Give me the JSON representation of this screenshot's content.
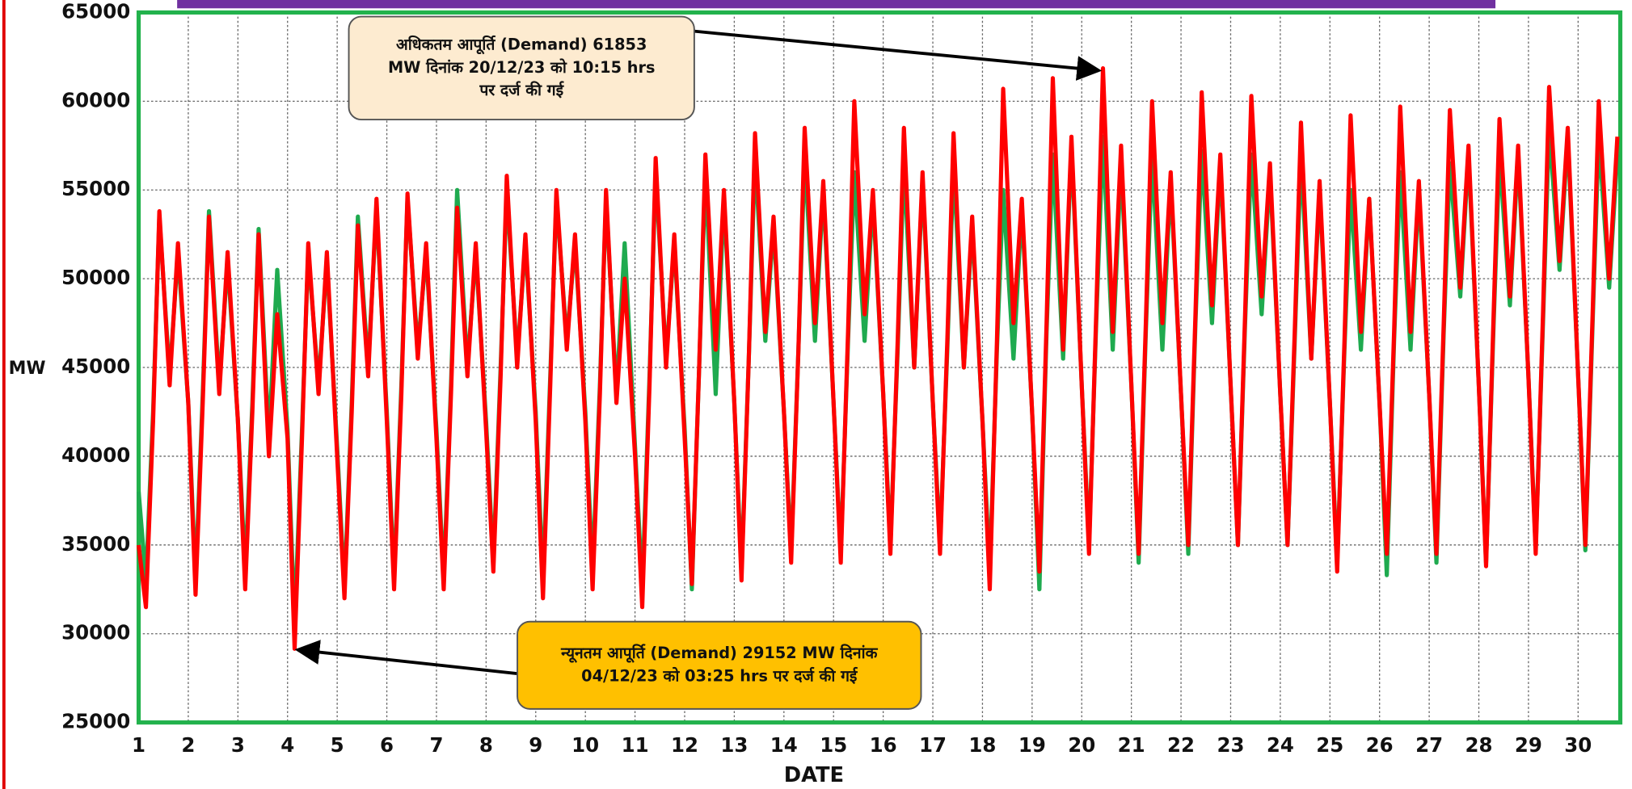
{
  "chart_data": {
    "type": "line",
    "y_label": "MW",
    "x_label": "DATE",
    "x": [
      1,
      1.146,
      1.292,
      1.417,
      1.625,
      1.792,
      2,
      2.146,
      2.292,
      2.417,
      2.625,
      2.792,
      3,
      3.146,
      3.292,
      3.417,
      3.625,
      3.792,
      4,
      4.142,
      4.292,
      4.417,
      4.625,
      4.792,
      5,
      5.146,
      5.292,
      5.417,
      5.625,
      5.792,
      6,
      6.146,
      6.292,
      6.417,
      6.625,
      6.792,
      7,
      7.146,
      7.292,
      7.417,
      7.625,
      7.792,
      8,
      8.146,
      8.292,
      8.417,
      8.625,
      8.792,
      9,
      9.146,
      9.292,
      9.417,
      9.625,
      9.792,
      10,
      10.146,
      10.292,
      10.417,
      10.625,
      10.792,
      11,
      11.146,
      11.292,
      11.417,
      11.625,
      11.792,
      12,
      12.146,
      12.292,
      12.417,
      12.625,
      12.792,
      13,
      13.146,
      13.292,
      13.417,
      13.625,
      13.792,
      14,
      14.146,
      14.292,
      14.417,
      14.625,
      14.792,
      15,
      15.146,
      15.292,
      15.417,
      15.625,
      15.792,
      16,
      16.146,
      16.292,
      16.417,
      16.625,
      16.792,
      17,
      17.146,
      17.292,
      17.417,
      17.625,
      17.792,
      18,
      18.146,
      18.292,
      18.417,
      18.625,
      18.792,
      19,
      19.146,
      19.292,
      19.417,
      19.625,
      19.792,
      20,
      20.146,
      20.292,
      20.427,
      20.625,
      20.792,
      21,
      21.146,
      21.292,
      21.417,
      21.625,
      21.792,
      22,
      22.146,
      22.292,
      22.417,
      22.625,
      22.792,
      23,
      23.146,
      23.292,
      23.417,
      23.625,
      23.792,
      24,
      24.146,
      24.292,
      24.417,
      24.625,
      24.792,
      25,
      25.146,
      25.292,
      25.417,
      25.625,
      25.792,
      26,
      26.146,
      26.292,
      26.417,
      26.625,
      26.792,
      27,
      27.146,
      27.292,
      27.417,
      27.625,
      27.792,
      28,
      28.146,
      28.292,
      28.417,
      28.625,
      28.792,
      29,
      29.146,
      29.292,
      29.417,
      29.625,
      29.792,
      30,
      30.146,
      30.292,
      30.417,
      30.625,
      30.792
    ],
    "series": [
      {
        "color": "#1faa4f",
        "values": [
          38000,
          33000,
          42500,
          53500,
          44500,
          51500,
          43000,
          33000,
          43500,
          53800,
          44000,
          51000,
          42000,
          33500,
          43000,
          52800,
          41000,
          50500,
          41500,
          30500,
          41500,
          51500,
          44000,
          51000,
          40500,
          32500,
          43000,
          53500,
          45000,
          54000,
          42500,
          33000,
          44000,
          54500,
          46000,
          51500,
          41500,
          33000,
          44000,
          55000,
          45000,
          51500,
          42000,
          34000,
          45000,
          55000,
          45500,
          52000,
          42500,
          33000,
          44500,
          54500,
          46500,
          52000,
          42500,
          33500,
          44000,
          54500,
          43500,
          52000,
          40500,
          32500,
          44500,
          56000,
          45500,
          52000,
          41500,
          32500,
          45000,
          56000,
          43500,
          54500,
          43000,
          33500,
          45500,
          57000,
          46500,
          53000,
          42500,
          34500,
          46000,
          57000,
          46500,
          55000,
          43000,
          34500,
          46500,
          56000,
          46500,
          54500,
          43500,
          35000,
          46000,
          56500,
          45000,
          55500,
          43000,
          35000,
          46000,
          56500,
          45000,
          53000,
          42000,
          33500,
          46000,
          55000,
          45500,
          54000,
          42500,
          32500,
          47000,
          57000,
          45500,
          57500,
          44000,
          35000,
          47500,
          58000,
          46000,
          56500,
          44000,
          34000,
          47000,
          57000,
          46000,
          55500,
          43500,
          34500,
          47500,
          57200,
          47500,
          56500,
          44000,
          35000,
          47500,
          57000,
          48000,
          56000,
          43500,
          35000,
          46500,
          57000,
          45500,
          55000,
          43000,
          34000,
          46000,
          55000,
          46000,
          54500,
          43000,
          33300,
          46500,
          56000,
          46000,
          55000,
          43500,
          34000,
          47000,
          56500,
          49000,
          57000,
          44000,
          34000,
          47000,
          57000,
          48500,
          57000,
          44500,
          34800,
          47500,
          58500,
          50500,
          58000,
          44500,
          34700,
          47500,
          58000,
          49500,
          57000
        ]
      },
      {
        "color": "#ff0000",
        "values": [
          35000,
          31500,
          42000,
          53800,
          44000,
          52000,
          43000,
          32200,
          43000,
          53500,
          43500,
          51500,
          42000,
          32500,
          42500,
          52500,
          40000,
          48000,
          41000,
          29152,
          41000,
          52000,
          43500,
          51500,
          40000,
          32000,
          42500,
          53000,
          44500,
          54500,
          42000,
          32500,
          43500,
          54800,
          45500,
          52000,
          41000,
          32500,
          43500,
          54000,
          44500,
          52000,
          41500,
          33500,
          44500,
          55800,
          45000,
          52500,
          42000,
          32000,
          44000,
          55000,
          46000,
          52500,
          42000,
          32500,
          43500,
          55000,
          43000,
          50000,
          40000,
          31500,
          44000,
          56800,
          45000,
          52500,
          41000,
          32800,
          45000,
          57000,
          46000,
          55000,
          43000,
          33000,
          45500,
          58200,
          47000,
          53500,
          42500,
          34000,
          46000,
          58500,
          47500,
          55500,
          43000,
          34000,
          47000,
          60000,
          48000,
          55000,
          43500,
          34500,
          46500,
          58500,
          45000,
          56000,
          43000,
          34500,
          46500,
          58200,
          45000,
          53500,
          42000,
          32500,
          46500,
          60700,
          47500,
          54500,
          42500,
          33500,
          47500,
          61300,
          46000,
          58000,
          44000,
          34500,
          48000,
          61853,
          47000,
          57500,
          44000,
          34500,
          47500,
          60000,
          47500,
          56000,
          43500,
          35000,
          48000,
          60500,
          48500,
          57000,
          44000,
          35000,
          48000,
          60300,
          49000,
          56500,
          43500,
          35000,
          47000,
          58800,
          45500,
          55500,
          43000,
          33500,
          46500,
          59200,
          47000,
          54500,
          43000,
          34500,
          47000,
          59700,
          47000,
          55500,
          43500,
          34500,
          47500,
          59500,
          49500,
          57500,
          44000,
          33800,
          47500,
          59000,
          49000,
          57500,
          44500,
          34500,
          48000,
          60800,
          51000,
          58500,
          44500,
          35000,
          48000,
          60000,
          50000,
          58000
        ]
      }
    ],
    "xlim": [
      1,
      30.85
    ],
    "xticks": [
      1,
      2,
      3,
      4,
      5,
      6,
      7,
      8,
      9,
      10,
      11,
      12,
      13,
      14,
      15,
      16,
      17,
      18,
      19,
      20,
      21,
      22,
      23,
      24,
      25,
      26,
      27,
      28,
      29,
      30
    ],
    "ylim": [
      25000,
      65000
    ],
    "yticks": [
      25000,
      30000,
      35000,
      40000,
      45000,
      50000,
      55000,
      60000,
      65000
    ],
    "grid": true,
    "annotations": [
      {
        "text": [
          "अधिकतम आपूर्ति (Demand) 61853",
          "MW दिनांक 20/12/23 को 10:15 hrs",
          "पर दर्ज की गई"
        ]
      },
      {
        "text": [
          "न्यूनतम आपूर्ति (Demand) 29152 MW दिनांक",
          "04/12/23 को 03:25 hrs पर दर्ज की गई"
        ]
      }
    ]
  }
}
